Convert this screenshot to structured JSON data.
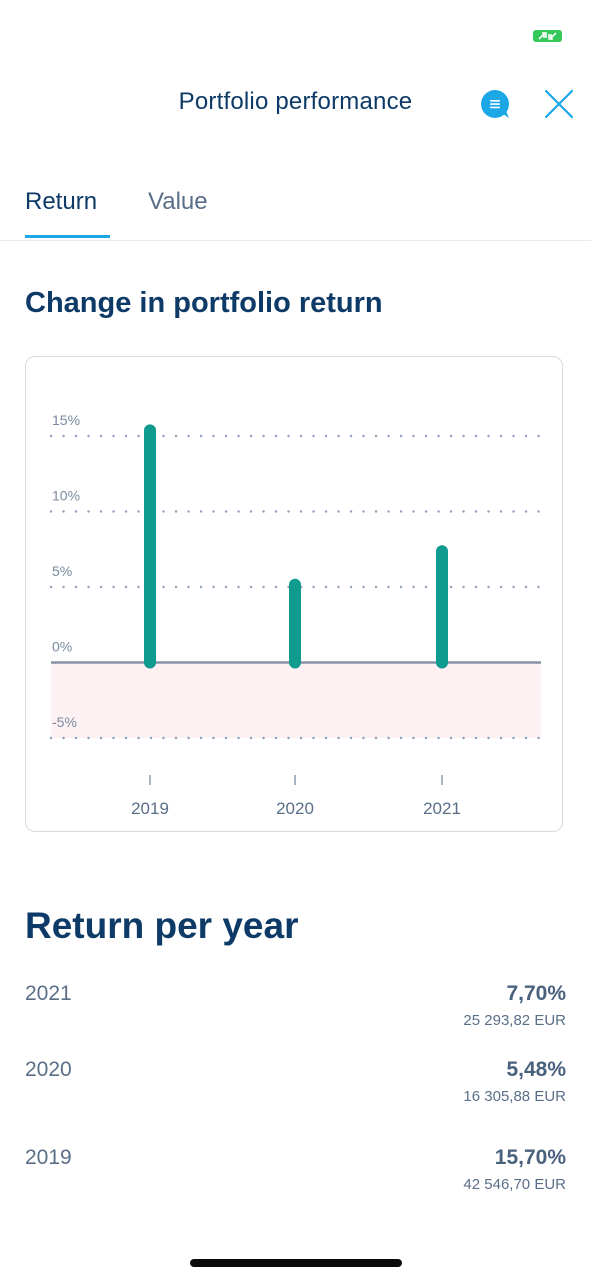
{
  "status_bar": {
    "battery_color": "#34c759"
  },
  "header": {
    "title": "Portfolio performance",
    "chat_icon": "chat-bubble-icon",
    "close_icon": "close-icon"
  },
  "tabs": [
    {
      "label": "Return",
      "active": true
    },
    {
      "label": "Value",
      "active": false
    }
  ],
  "chart_section": {
    "title": "Change in portfolio return"
  },
  "chart_data": {
    "type": "bar",
    "categories": [
      "2019",
      "2020",
      "2021"
    ],
    "values": [
      15.7,
      5.48,
      7.7
    ],
    "ylim": [
      -5,
      15
    ],
    "y_ticks": [
      "15%",
      "10%",
      "5%",
      "0%",
      "-5%"
    ],
    "y_tick_values": [
      15,
      10,
      5,
      0,
      -5
    ],
    "bar_color": "#0f9b8e",
    "negative_zone_color": "#fdf1f3",
    "grid": true,
    "title": "",
    "xlabel": "",
    "ylabel": ""
  },
  "return_per_year": {
    "title": "Return per year",
    "rows": [
      {
        "year": "2021",
        "percent": "7,70%",
        "amount": "25 293,82 EUR"
      },
      {
        "year": "2020",
        "percent": "5,48%",
        "amount": "16 305,88 EUR"
      },
      {
        "year": "2019",
        "percent": "15,70%",
        "amount": "42 546,70 EUR"
      }
    ]
  }
}
